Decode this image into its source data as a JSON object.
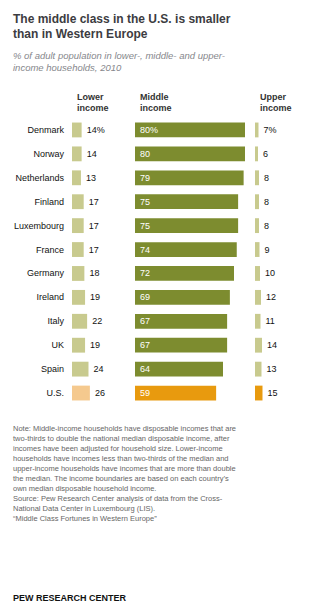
{
  "chart_data": {
    "type": "bar",
    "orientation": "horizontal",
    "title": "The middle class in the U.S. is smaller\nthan in Western Europe",
    "subtitle": "% of adult population in lower-, middle- and upper-\nincome households, 2010",
    "annotations": [
      "Note: Middle-income households have disposable incomes that are\ntwo-thirds to double the national median disposable income, after\nincomes have been adjusted for household size. Lower-income\nhouseholds have incomes less than two-thirds of the median and\nupper-income households have incomes that are more than double\nthe median. The income boundaries are based on each country’s\nown median disposable household income.\nSource: Pew Research Center analysis of data from the Cross-\nNational Data Center in Luxembourg (LIS).\n“Middle Class Fortunes in Western Europe”",
      "PEW RESEARCH CENTER"
    ],
    "categories": [
      "Denmark",
      "Norway",
      "Netherlands",
      "Finland",
      "Luxembourg",
      "France",
      "Germany",
      "Ireland",
      "Italy",
      "UK",
      "Spain",
      "U.S."
    ],
    "series": [
      {
        "name": "Lower\nincome",
        "colors": [
          "#c8ca8e",
          "#c8ca8e",
          "#c8ca8e",
          "#c8ca8e",
          "#c8ca8e",
          "#c8ca8e",
          "#c8ca8e",
          "#c8ca8e",
          "#c8ca8e",
          "#c8ca8e",
          "#c8ca8e",
          "#f5c98e"
        ],
        "values": [
          14,
          14,
          13,
          17,
          17,
          17,
          18,
          19,
          22,
          19,
          24,
          26
        ],
        "value_labels": [
          "14%",
          "14",
          "13",
          "17",
          "17",
          "17",
          "18",
          "19",
          "22",
          "19",
          "24",
          "26"
        ]
      },
      {
        "name": "Middle\nincome",
        "colors": [
          "#7d8c2f",
          "#7d8c2f",
          "#7d8c2f",
          "#7d8c2f",
          "#7d8c2f",
          "#7d8c2f",
          "#7d8c2f",
          "#7d8c2f",
          "#7d8c2f",
          "#7d8c2f",
          "#7d8c2f",
          "#e89a0e"
        ],
        "values": [
          80,
          80,
          79,
          75,
          75,
          74,
          72,
          69,
          67,
          67,
          64,
          59
        ],
        "value_labels": [
          "80%",
          "80",
          "79",
          "75",
          "75",
          "74",
          "72",
          "69",
          "67",
          "67",
          "64",
          "59"
        ]
      },
      {
        "name": "Upper\nincome",
        "colors": [
          "#c8ca8e",
          "#c8ca8e",
          "#c8ca8e",
          "#c8ca8e",
          "#c8ca8e",
          "#c8ca8e",
          "#c8ca8e",
          "#c8ca8e",
          "#c8ca8e",
          "#c8ca8e",
          "#c8ca8e",
          "#e89a0e"
        ],
        "values": [
          7,
          6,
          8,
          8,
          8,
          9,
          10,
          12,
          11,
          14,
          13,
          15
        ],
        "value_labels": [
          "7%",
          "6",
          "8",
          "8",
          "8",
          "9",
          "10",
          "12",
          "11",
          "14",
          "13",
          "15"
        ]
      }
    ],
    "xlim": [
      0,
      80
    ],
    "grid": false,
    "tick_labels": "y",
    "data_labels": true
  }
}
